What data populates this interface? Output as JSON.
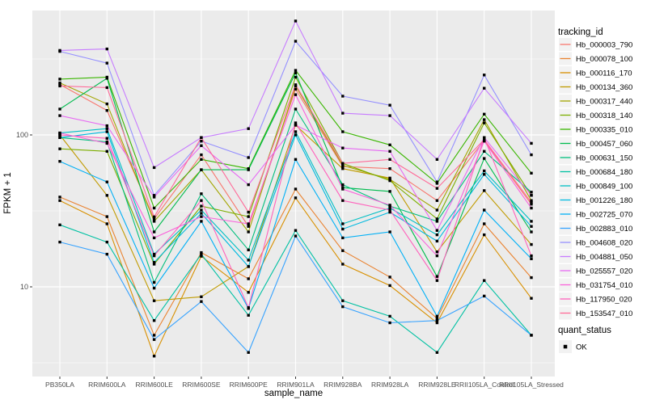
{
  "figure": {
    "bg": "#FFFFFF",
    "panel_bg": "#EBEBEB",
    "grid_color": "#FFFFFF",
    "tick_color": "#333333",
    "axis_text_color": "#4D4D4D",
    "title_color": "#000000",
    "point_color": "#000000",
    "legend_key_bg": "#F2F2F2"
  },
  "axes": {
    "x_title": "sample_name",
    "y_title": "FPKM + 1",
    "y_ticks": [
      {
        "label": "100",
        "value": 100
      },
      {
        "label": "10",
        "value": 10
      }
    ]
  },
  "legend": {
    "tracking_title": "tracking_id",
    "quant_title": "quant_status",
    "quant_items": [
      {
        "label": "OK",
        "shape": "filled-square",
        "color": "#000000"
      }
    ]
  },
  "chart_data": {
    "type": "line",
    "title": "",
    "xlabel": "sample_name",
    "ylabel": "FPKM + 1",
    "y_scale": "log10",
    "ylim": [
      2.6,
      660
    ],
    "y_major_gridlines": [
      10,
      100
    ],
    "y_minor_gridlines": [
      3.162,
      31.62,
      316.2
    ],
    "grid": true,
    "legend_position": "right",
    "point_shape": "filled-square",
    "point_color": "#000000",
    "categories": [
      "PB350LA",
      "RRIM600LA",
      "RRIM600LE",
      "RRIM600SE",
      "RRIM600PE",
      "RRIM901LA",
      "RRIM928BA",
      "RRIM928LA",
      "RRIM928LE",
      "RRII105LA_Control",
      "RRII105LA_Stressed"
    ],
    "series": [
      {
        "name": "Hb_000003_790",
        "color": "#F8766D",
        "values": [
          215,
          145,
          28,
          74,
          25,
          200,
          62,
          60,
          37,
          92,
          35
        ]
      },
      {
        "name": "Hb_000078_100",
        "color": "#EA8331",
        "values": [
          39,
          29,
          4.8,
          16.8,
          11.3,
          44,
          17.3,
          11.6,
          6.2,
          26,
          11.5
        ]
      },
      {
        "name": "Hb_000116_170",
        "color": "#D89000",
        "values": [
          37,
          26,
          3.5,
          15.9,
          9.2,
          38.5,
          14.1,
          10.2,
          5.8,
          22,
          8.4
        ]
      },
      {
        "name": "Hb_000134_360",
        "color": "#C09B00",
        "values": [
          100,
          40,
          8.1,
          8.6,
          13.6,
          116,
          60,
          52,
          17,
          43,
          19
        ]
      },
      {
        "name": "Hb_000317_440",
        "color": "#A3A500",
        "values": [
          220,
          160,
          27,
          59,
          23,
          210,
          63,
          51,
          32,
          126,
          37
        ]
      },
      {
        "name": "Hb_000318_140",
        "color": "#7CAE00",
        "values": [
          81,
          78,
          14.1,
          34,
          29,
          240,
          65,
          50,
          28,
          120,
          40
        ]
      },
      {
        "name": "Hb_000335_010",
        "color": "#39B600",
        "values": [
          233,
          240,
          33,
          69,
          60,
          266,
          105,
          86,
          48,
          137,
          56
        ]
      },
      {
        "name": "Hb_000457_060",
        "color": "#00BB4E",
        "values": [
          148,
          236,
          23,
          59,
          59,
          256,
          45,
          42.5,
          11.7,
          70,
          23
        ]
      },
      {
        "name": "Hb_000631_150",
        "color": "#00BF7D",
        "values": [
          96,
          90,
          10.7,
          41,
          17.5,
          148,
          47,
          34,
          27,
          78,
          42
        ]
      },
      {
        "name": "Hb_000684_180",
        "color": "#00C1A3",
        "values": [
          25.6,
          19.7,
          6,
          16.4,
          6.5,
          23.5,
          8.1,
          6.4,
          3.7,
          11,
          4.8
        ]
      },
      {
        "name": "Hb_000849_100",
        "color": "#00BFC4",
        "values": [
          103,
          110,
          16.4,
          32,
          15,
          105,
          26,
          33,
          22,
          58,
          27
        ]
      },
      {
        "name": "Hb_001226_180",
        "color": "#00BAE0",
        "values": [
          96,
          105,
          14.5,
          30.5,
          13.6,
          100,
          24,
          31,
          20,
          55,
          25
        ]
      },
      {
        "name": "Hb_002725_070",
        "color": "#00B0F6",
        "values": [
          67,
          49,
          9.8,
          27,
          7.2,
          69,
          21,
          23,
          6.4,
          32,
          15.3
        ]
      },
      {
        "name": "Hb_002883_010",
        "color": "#35A2FF",
        "values": [
          19.7,
          16.4,
          4.5,
          8,
          3.7,
          21.6,
          7.4,
          5.8,
          6,
          8.7,
          4.8
        ]
      },
      {
        "name": "Hb_004608_020",
        "color": "#9590FF",
        "values": [
          355,
          297,
          40,
          91,
          71,
          414,
          180,
          157,
          49,
          248,
          74
        ]
      },
      {
        "name": "Hb_004881_050",
        "color": "#C77CFF",
        "values": [
          360,
          368,
          61,
          96,
          110,
          562,
          139,
          134,
          69,
          203,
          88
        ]
      },
      {
        "name": "Hb_025557_020",
        "color": "#E76BF3",
        "values": [
          134,
          115,
          39,
          85,
          47,
          116,
          82,
          78,
          23.5,
          96,
          40
        ]
      },
      {
        "name": "Hb_031754_010",
        "color": "#FA62DB",
        "values": [
          103,
          88,
          21,
          29,
          26,
          184,
          44,
          34.5,
          16,
          91,
          33
        ]
      },
      {
        "name": "Hb_117950_020",
        "color": "#FF62BC",
        "values": [
          100,
          95,
          16,
          37,
          7.3,
          120,
          37,
          32,
          11,
          96,
          16
        ]
      },
      {
        "name": "Hb_153547_010",
        "color": "#FF6A98",
        "values": [
          210,
          205,
          28.9,
          96,
          31,
          214,
          65,
          69,
          44.5,
          93,
          36
        ]
      }
    ]
  }
}
